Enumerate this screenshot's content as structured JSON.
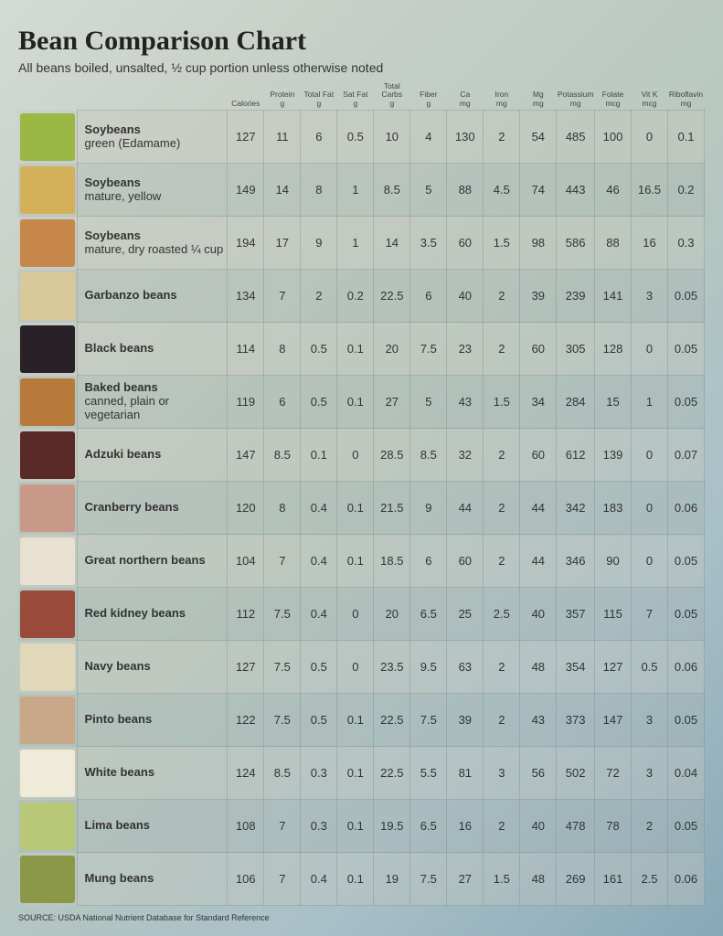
{
  "title": "Bean Comparison Chart",
  "subtitle": "All beans boiled, unsalted, ½ cup portion unless otherwise noted",
  "source": "SOURCE: USDA National Nutrient Database for Standard Reference",
  "columns": [
    {
      "label": "Calories",
      "unit": ""
    },
    {
      "label": "Protein",
      "unit": "g"
    },
    {
      "label": "Total Fat",
      "unit": "g"
    },
    {
      "label": "Sat Fat",
      "unit": "g"
    },
    {
      "label": "Total Carbs",
      "unit": "g"
    },
    {
      "label": "Fiber",
      "unit": "g"
    },
    {
      "label": "Ca",
      "unit": "mg"
    },
    {
      "label": "Iron",
      "unit": "mg"
    },
    {
      "label": "Mg",
      "unit": "mg"
    },
    {
      "label": "Potassium",
      "unit": "mg"
    },
    {
      "label": "Folate",
      "unit": "mcg"
    },
    {
      "label": "Vit K",
      "unit": "mcg"
    },
    {
      "label": "Riboflavin",
      "unit": "mg"
    }
  ],
  "rows": [
    {
      "name": "Soybeans",
      "sub": "green (Edamame)",
      "color": "#9ab843",
      "values": [
        "127",
        "11",
        "6",
        "0.5",
        "10",
        "4",
        "130",
        "2",
        "54",
        "485",
        "100",
        "0",
        "0.1"
      ]
    },
    {
      "name": "Soybeans",
      "sub": "mature, yellow",
      "color": "#d4b05a",
      "values": [
        "149",
        "14",
        "8",
        "1",
        "8.5",
        "5",
        "88",
        "4.5",
        "74",
        "443",
        "46",
        "16.5",
        "0.2"
      ]
    },
    {
      "name": "Soybeans",
      "sub": "mature, dry roasted ¼ cup",
      "color": "#c8874a",
      "values": [
        "194",
        "17",
        "9",
        "1",
        "14",
        "3.5",
        "60",
        "1.5",
        "98",
        "586",
        "88",
        "16",
        "0.3"
      ]
    },
    {
      "name": "Garbanzo beans",
      "sub": "",
      "color": "#d8c89a",
      "values": [
        "134",
        "7",
        "2",
        "0.2",
        "22.5",
        "6",
        "40",
        "2",
        "39",
        "239",
        "141",
        "3",
        "0.05"
      ]
    },
    {
      "name": "Black beans",
      "sub": "",
      "color": "#2a2028",
      "values": [
        "114",
        "8",
        "0.5",
        "0.1",
        "20",
        "7.5",
        "23",
        "2",
        "60",
        "305",
        "128",
        "0",
        "0.05"
      ]
    },
    {
      "name": "Baked beans",
      "sub": "canned, plain or vegetarian",
      "color": "#b87a3a",
      "values": [
        "119",
        "6",
        "0.5",
        "0.1",
        "27",
        "5",
        "43",
        "1.5",
        "34",
        "284",
        "15",
        "1",
        "0.05"
      ]
    },
    {
      "name": "Adzuki beans",
      "sub": "",
      "color": "#5a2a28",
      "values": [
        "147",
        "8.5",
        "0.1",
        "0",
        "28.5",
        "8.5",
        "32",
        "2",
        "60",
        "612",
        "139",
        "0",
        "0.07"
      ]
    },
    {
      "name": "Cranberry beans",
      "sub": "",
      "color": "#c89888",
      "values": [
        "120",
        "8",
        "0.4",
        "0.1",
        "21.5",
        "9",
        "44",
        "2",
        "44",
        "342",
        "183",
        "0",
        "0.06"
      ]
    },
    {
      "name": "Great northern beans",
      "sub": "",
      "color": "#e8e0d0",
      "values": [
        "104",
        "7",
        "0.4",
        "0.1",
        "18.5",
        "6",
        "60",
        "2",
        "44",
        "346",
        "90",
        "0",
        "0.05"
      ]
    },
    {
      "name": "Red kidney beans",
      "sub": "",
      "color": "#9a4a3a",
      "values": [
        "112",
        "7.5",
        "0.4",
        "0",
        "20",
        "6.5",
        "25",
        "2.5",
        "40",
        "357",
        "115",
        "7",
        "0.05"
      ]
    },
    {
      "name": "Navy beans",
      "sub": "",
      "color": "#e0d8b8",
      "values": [
        "127",
        "7.5",
        "0.5",
        "0",
        "23.5",
        "9.5",
        "63",
        "2",
        "48",
        "354",
        "127",
        "0.5",
        "0.06"
      ]
    },
    {
      "name": "Pinto beans",
      "sub": "",
      "color": "#c8a888",
      "values": [
        "122",
        "7.5",
        "0.5",
        "0.1",
        "22.5",
        "7.5",
        "39",
        "2",
        "43",
        "373",
        "147",
        "3",
        "0.05"
      ]
    },
    {
      "name": "White beans",
      "sub": "",
      "color": "#f0ead8",
      "values": [
        "124",
        "8.5",
        "0.3",
        "0.1",
        "22.5",
        "5.5",
        "81",
        "3",
        "56",
        "502",
        "72",
        "3",
        "0.04"
      ]
    },
    {
      "name": "Lima beans",
      "sub": "",
      "color": "#b8c878",
      "values": [
        "108",
        "7",
        "0.3",
        "0.1",
        "19.5",
        "6.5",
        "16",
        "2",
        "40",
        "478",
        "78",
        "2",
        "0.05"
      ]
    },
    {
      "name": "Mung beans",
      "sub": "",
      "color": "#8a9848",
      "values": [
        "106",
        "7",
        "0.4",
        "0.1",
        "19",
        "7.5",
        "27",
        "1.5",
        "48",
        "269",
        "161",
        "2.5",
        "0.06"
      ]
    }
  ]
}
